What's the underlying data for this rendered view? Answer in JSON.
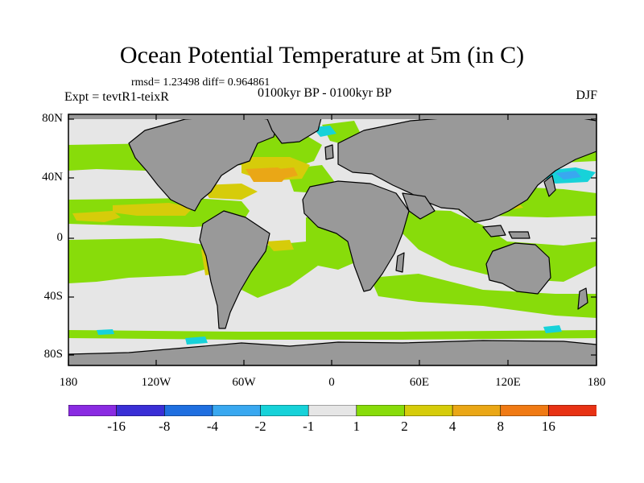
{
  "figure": {
    "title": "Ocean Potential Temperature at 5m (in C)",
    "stats": "rmsd= 1.23498 diff= 0.964861",
    "experiment": "Expt = tevtR1-teixR",
    "period": "0100kyr BP - 0100kyr BP",
    "season": "DJF"
  },
  "axes": {
    "lat_labels": [
      "80N",
      "40N",
      "0",
      "40S",
      "80S"
    ],
    "lon_labels": [
      "180",
      "120W",
      "60W",
      "0",
      "60E",
      "120E",
      "180"
    ]
  },
  "legend": {
    "colors": [
      "#8a2be2",
      "#3a2fd6",
      "#1f6fe0",
      "#39a8f0",
      "#17d2d9",
      "#e6e6e6",
      "#88dc0a",
      "#d6cc0a",
      "#eaa716",
      "#f07a14",
      "#e83214"
    ],
    "labels": [
      "-16",
      "-8",
      "-4",
      "-2",
      "-1",
      "1",
      "2",
      "4",
      "8",
      "16"
    ]
  },
  "map_colors": {
    "land": "#999999",
    "neutral": "#e6e6e6",
    "green": "#88dc0a",
    "yellow": "#d6cc0a",
    "orange": "#eaa716",
    "cyan": "#17d2d9",
    "blue": "#39a8f0"
  }
}
